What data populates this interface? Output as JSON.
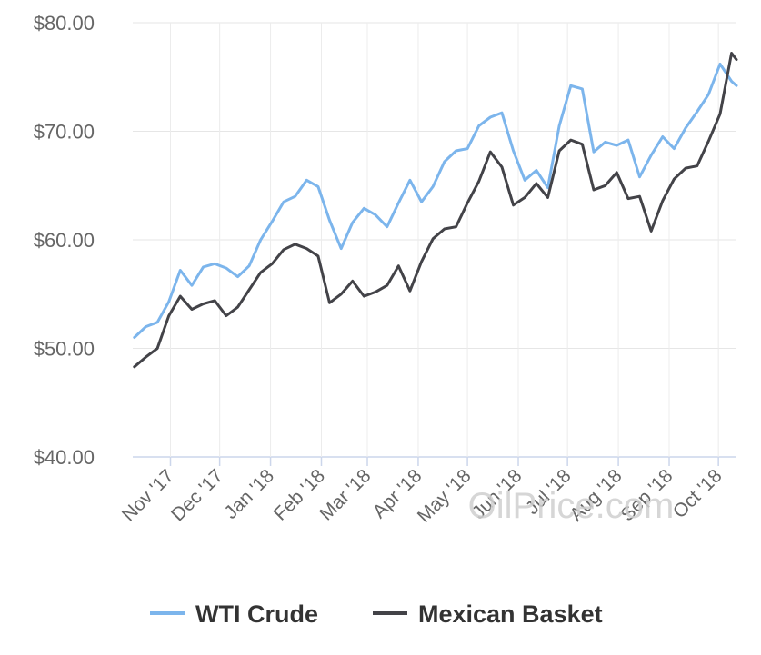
{
  "chart_data": {
    "type": "line",
    "title": "",
    "xlabel": "",
    "ylabel": "",
    "ylim": [
      40,
      80
    ],
    "yticks": [
      "$40.00",
      "$50.00",
      "$60.00",
      "$70.00",
      "$80.00"
    ],
    "ytick_values": [
      40,
      50,
      60,
      70,
      80
    ],
    "xticks": [
      "Nov '17",
      "Dec '17",
      "Jan '18",
      "Feb '18",
      "Mar '18",
      "Apr '18",
      "May '18",
      "Jun '18",
      "Jul '18",
      "Aug '18",
      "Sep '18",
      "Oct '18"
    ],
    "xtick_dates": [
      "2017-11-01",
      "2017-12-01",
      "2018-01-01",
      "2018-02-01",
      "2018-03-01",
      "2018-04-01",
      "2018-05-01",
      "2018-06-01",
      "2018-07-01",
      "2018-08-01",
      "2018-09-01",
      "2018-10-01"
    ],
    "xrange": [
      "2017-10-09",
      "2018-10-12"
    ],
    "grid": true,
    "legend_position": "bottom",
    "watermark": "OilPrice.com",
    "dates": [
      "2017-10-10",
      "2017-10-17",
      "2017-10-24",
      "2017-10-31",
      "2017-11-07",
      "2017-11-14",
      "2017-11-21",
      "2017-11-28",
      "2017-12-05",
      "2017-12-12",
      "2017-12-19",
      "2017-12-26",
      "2018-01-02",
      "2018-01-09",
      "2018-01-16",
      "2018-01-23",
      "2018-01-30",
      "2018-02-06",
      "2018-02-13",
      "2018-02-20",
      "2018-02-27",
      "2018-03-06",
      "2018-03-13",
      "2018-03-20",
      "2018-03-27",
      "2018-04-03",
      "2018-04-10",
      "2018-04-17",
      "2018-04-24",
      "2018-05-01",
      "2018-05-08",
      "2018-05-15",
      "2018-05-22",
      "2018-05-29",
      "2018-06-05",
      "2018-06-12",
      "2018-06-19",
      "2018-06-26",
      "2018-07-03",
      "2018-07-10",
      "2018-07-17",
      "2018-07-24",
      "2018-07-31",
      "2018-08-07",
      "2018-08-14",
      "2018-08-21",
      "2018-08-28",
      "2018-09-04",
      "2018-09-11",
      "2018-09-18",
      "2018-09-25",
      "2018-10-02",
      "2018-10-09",
      "2018-10-12"
    ],
    "series": [
      {
        "name": "WTI Crude",
        "color": "#7cb5ec",
        "values": [
          51.0,
          52.0,
          52.4,
          54.3,
          57.2,
          55.8,
          57.5,
          57.8,
          57.4,
          56.6,
          57.6,
          60.0,
          61.7,
          63.5,
          64.0,
          65.5,
          64.9,
          61.8,
          59.2,
          61.6,
          62.9,
          62.3,
          61.2,
          63.4,
          65.5,
          63.5,
          64.9,
          67.2,
          68.2,
          68.4,
          70.5,
          71.3,
          71.7,
          68.2,
          65.5,
          66.4,
          64.8,
          70.5,
          74.2,
          73.9,
          68.1,
          69.0,
          68.7,
          69.2,
          65.8,
          67.8,
          69.5,
          68.4,
          70.3,
          71.8,
          73.4,
          76.2,
          74.6,
          74.2
        ]
      },
      {
        "name": "Mexican Basket",
        "color": "#434348",
        "values": [
          48.3,
          49.2,
          50.0,
          53.0,
          54.8,
          53.6,
          54.1,
          54.4,
          53.0,
          53.8,
          55.4,
          57.0,
          57.8,
          59.1,
          59.6,
          59.2,
          58.5,
          54.2,
          55.0,
          56.2,
          54.8,
          55.2,
          55.8,
          57.6,
          55.3,
          58.0,
          60.1,
          61.0,
          61.2,
          63.4,
          65.4,
          68.1,
          66.7,
          63.2,
          63.9,
          65.2,
          63.9,
          68.2,
          69.2,
          68.8,
          64.6,
          65.0,
          66.2,
          63.8,
          64.0,
          60.8,
          63.6,
          65.6,
          66.6,
          66.8,
          69.1,
          71.6,
          77.2,
          76.6
        ]
      }
    ]
  }
}
